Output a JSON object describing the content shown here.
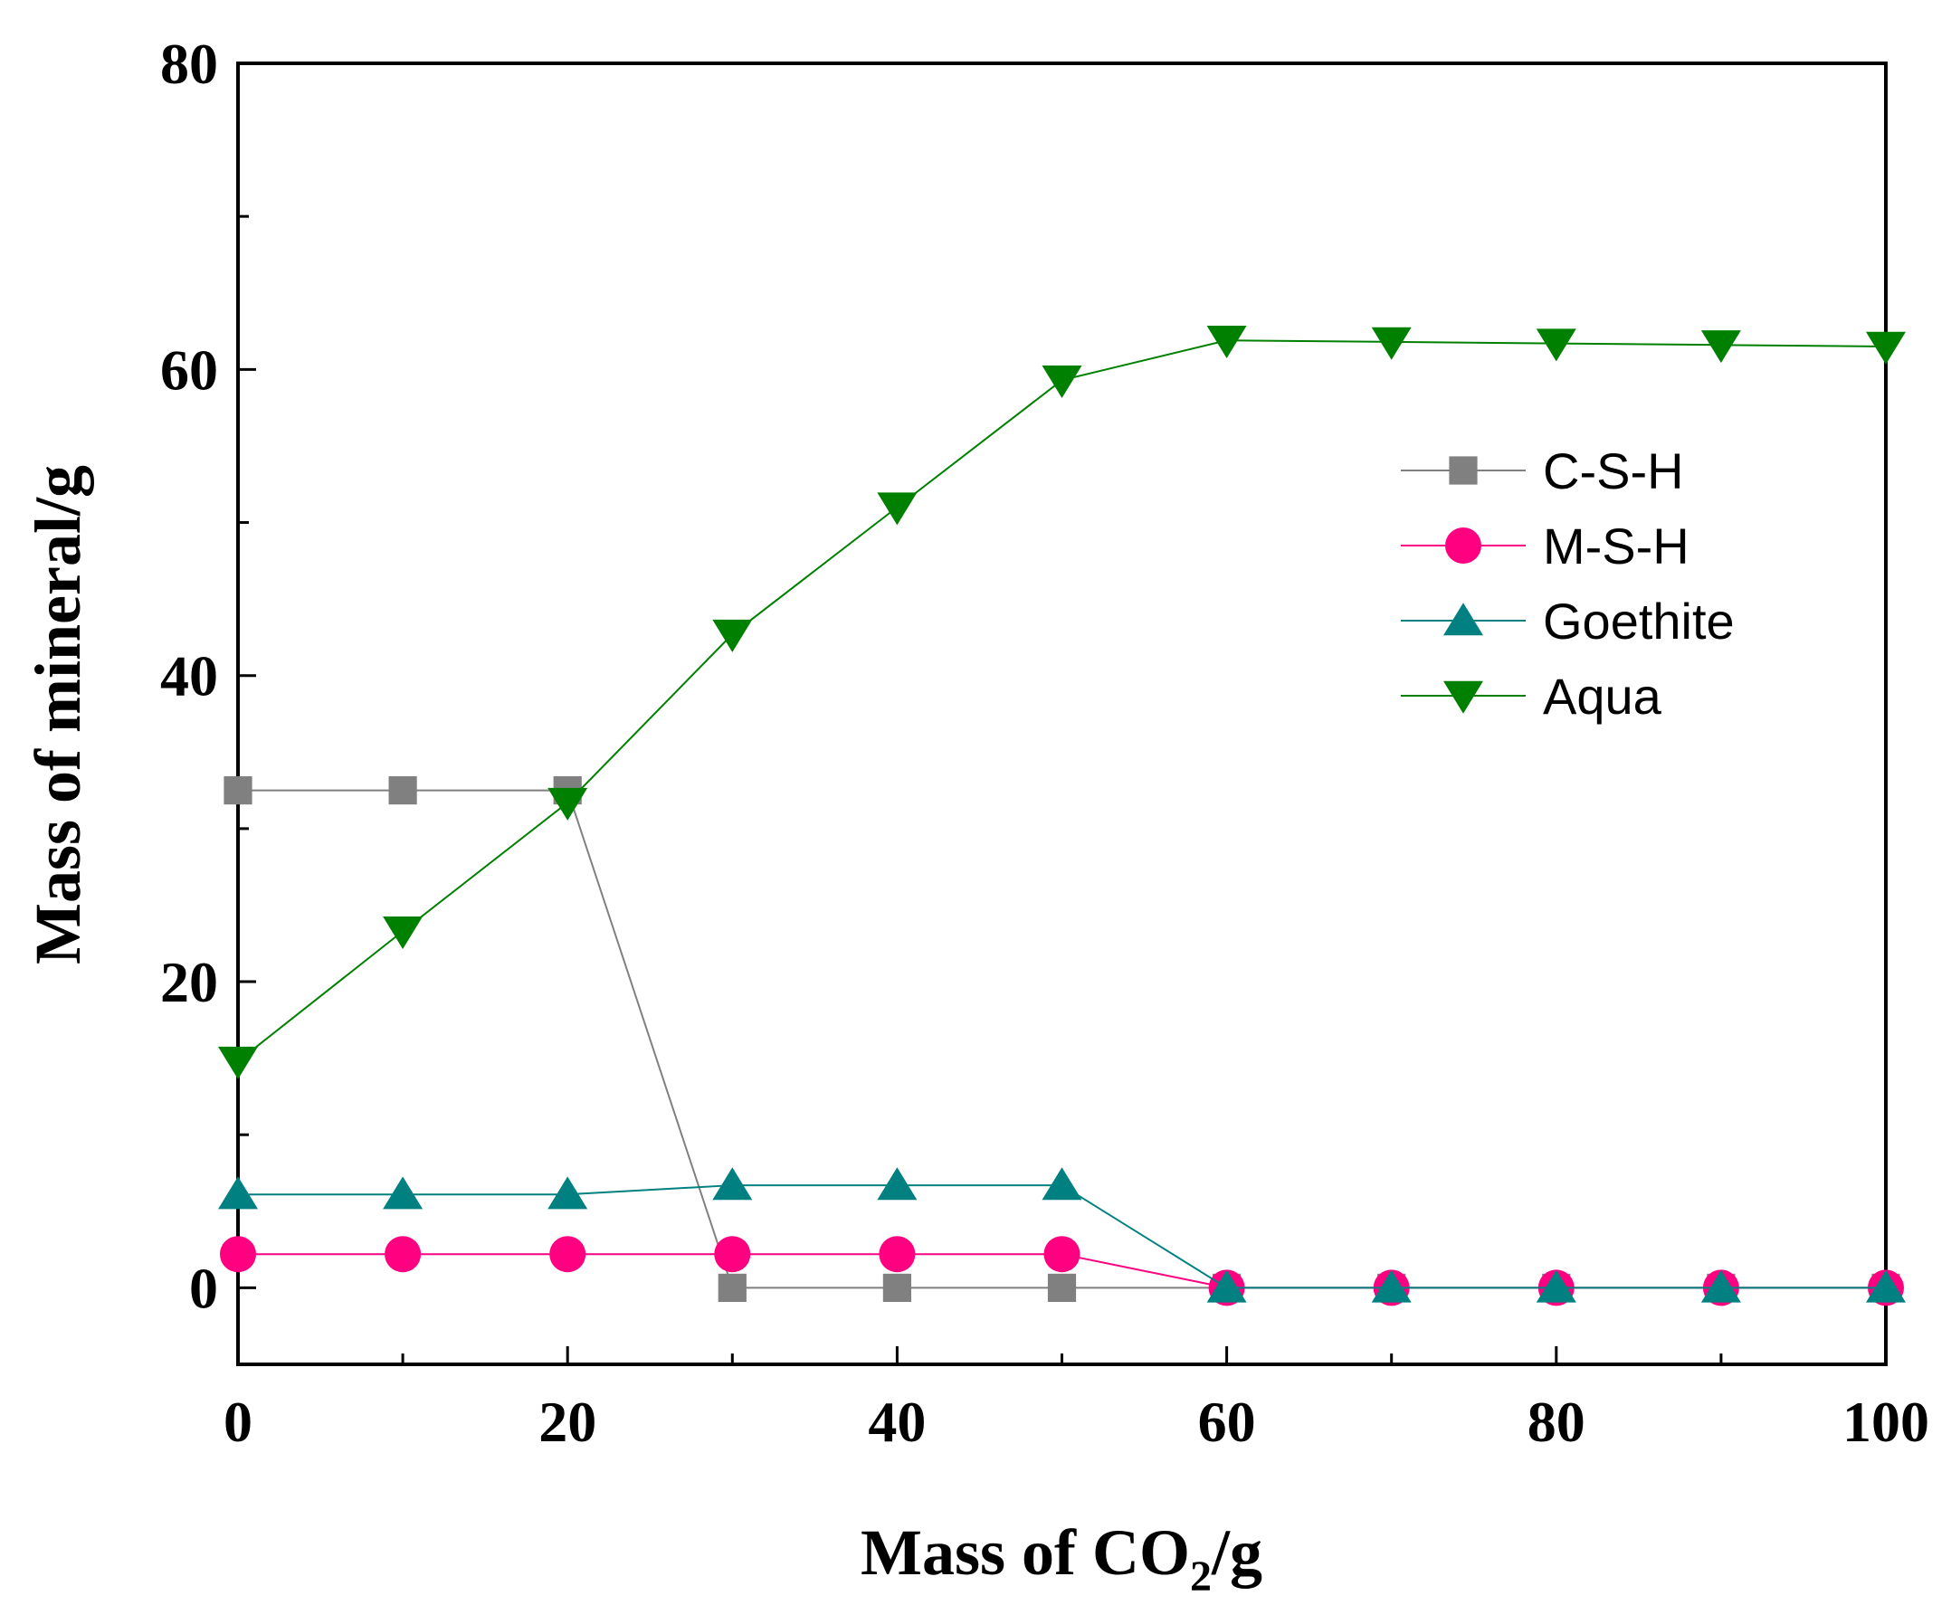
{
  "chart_data": {
    "type": "line",
    "title": "",
    "xlabel": {
      "prefix": "Mass of CO",
      "sub": "2",
      "suffix": "/g"
    },
    "ylabel": "Mass of mineral/g",
    "xlim": [
      0,
      100
    ],
    "ylim": [
      -5,
      80
    ],
    "x_ticks": [
      0,
      20,
      40,
      60,
      80,
      100
    ],
    "y_ticks": [
      0,
      20,
      40,
      60,
      80
    ],
    "x_tick_labels": [
      "0",
      "20",
      "40",
      "60",
      "80",
      "100"
    ],
    "y_tick_labels": [
      "0",
      "20",
      "40",
      "60",
      "80"
    ],
    "x": [
      0,
      10,
      20,
      30,
      40,
      50,
      60,
      70,
      80,
      90,
      100
    ],
    "legend_position": "right-middle",
    "series": [
      {
        "name": "C-S-H",
        "marker": "square",
        "color": "#808080",
        "values": [
          32.5,
          32.5,
          32.5,
          0,
          0,
          0,
          0,
          0,
          0,
          0,
          0
        ]
      },
      {
        "name": "M-S-H",
        "marker": "circle",
        "color": "#ff0080",
        "values": [
          2.2,
          2.2,
          2.2,
          2.2,
          2.2,
          2.2,
          0,
          0,
          0,
          0,
          0
        ]
      },
      {
        "name": "Goethite",
        "marker": "triangle-up",
        "color": "#008080",
        "values": [
          6.1,
          6.1,
          6.1,
          6.7,
          6.7,
          6.7,
          0,
          0,
          0,
          0,
          0
        ]
      },
      {
        "name": "Aqua",
        "marker": "triangle-down",
        "color": "#008000",
        "values": [
          14.8,
          23.3,
          31.7,
          42.7,
          51.0,
          59.3,
          61.9,
          61.8,
          61.7,
          61.6,
          61.5
        ]
      }
    ]
  }
}
